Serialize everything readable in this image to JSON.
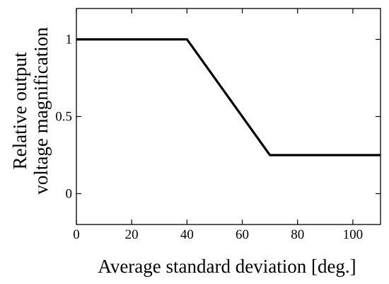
{
  "chart_data": {
    "type": "line",
    "title": "",
    "xlabel": "Average standard deviation [deg.]",
    "ylabel_lines": [
      "Relative output",
      "voltage magnification"
    ],
    "xlim": [
      0,
      110
    ],
    "ylim": [
      -0.2,
      1.2
    ],
    "xticks": [
      0,
      20,
      40,
      60,
      80,
      100
    ],
    "xtick_labels": [
      "0",
      "20",
      "40",
      "60",
      "80",
      "100"
    ],
    "yticks": [
      0,
      0.5,
      1
    ],
    "ytick_labels": [
      "0",
      "0.5",
      "1"
    ],
    "grid": false,
    "legend": "none",
    "line_color": "#000000",
    "series": [
      {
        "x": [
          0,
          40,
          70,
          110
        ],
        "y": [
          1,
          1,
          0.25,
          0.25
        ]
      }
    ]
  }
}
